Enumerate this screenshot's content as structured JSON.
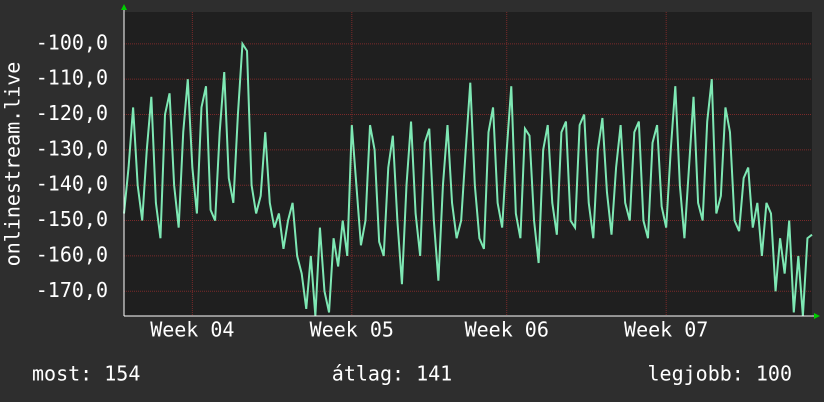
{
  "chart_data": {
    "type": "line",
    "ylabel": "onlinestream.live",
    "series": [
      {
        "name": "onlinestream.live",
        "color": "#7ee8b4",
        "values": [
          -148,
          -135,
          -118,
          -140,
          -150,
          -130,
          -115,
          -145,
          -155,
          -120,
          -114,
          -140,
          -152,
          -125,
          -110,
          -135,
          -148,
          -118,
          -112,
          -147,
          -150,
          -125,
          -108,
          -138,
          -145,
          -120,
          -100,
          -102,
          -140,
          -148,
          -143,
          -125,
          -145,
          -152,
          -148,
          -158,
          -150,
          -145,
          -160,
          -165,
          -175,
          -160,
          -177,
          -152,
          -170,
          -176,
          -155,
          -163,
          -150,
          -160,
          -123,
          -140,
          -157,
          -150,
          -123,
          -130,
          -156,
          -160,
          -135,
          -126,
          -150,
          -168,
          -140,
          -122,
          -148,
          -160,
          -128,
          -124,
          -150,
          -167,
          -140,
          -123,
          -145,
          -155,
          -150,
          -130,
          -111,
          -140,
          -155,
          -158,
          -125,
          -118,
          -145,
          -152,
          -130,
          -112,
          -148,
          -155,
          -124,
          -126,
          -150,
          -162,
          -130,
          -123,
          -145,
          -154,
          -125,
          -122,
          -150,
          -152,
          -123,
          -120,
          -145,
          -155,
          -130,
          -121,
          -142,
          -154,
          -135,
          -123,
          -145,
          -150,
          -125,
          -122,
          -150,
          -155,
          -128,
          -123,
          -146,
          -152,
          -130,
          -112,
          -140,
          -155,
          -135,
          -115,
          -145,
          -150,
          -122,
          -110,
          -148,
          -143,
          -118,
          -125,
          -150,
          -153,
          -138,
          -135,
          -152,
          -145,
          -160,
          -145,
          -148,
          -170,
          -155,
          -165,
          -150,
          -176,
          -160,
          -177,
          -155,
          -154
        ]
      }
    ],
    "xlim": [
      0,
      151
    ],
    "xticks": [
      {
        "value": 15,
        "label": "Week 04"
      },
      {
        "value": 50,
        "label": "Week 05"
      },
      {
        "value": 84,
        "label": "Week 06"
      },
      {
        "value": 119,
        "label": "Week 07"
      }
    ],
    "ylim": [
      -177,
      -91
    ],
    "yticks": [
      {
        "value": -100,
        "label": "-100,0"
      },
      {
        "value": -110,
        "label": "-110,0"
      },
      {
        "value": -120,
        "label": "-120,0"
      },
      {
        "value": -130,
        "label": "-130,0"
      },
      {
        "value": -140,
        "label": "-140,0"
      },
      {
        "value": -150,
        "label": "-150,0"
      },
      {
        "value": -160,
        "label": "-160,0"
      },
      {
        "value": -170,
        "label": "-170,0"
      }
    ],
    "grid": true,
    "footer": [
      "most: 154",
      "átlag: 141",
      "legjobb: 100"
    ]
  }
}
